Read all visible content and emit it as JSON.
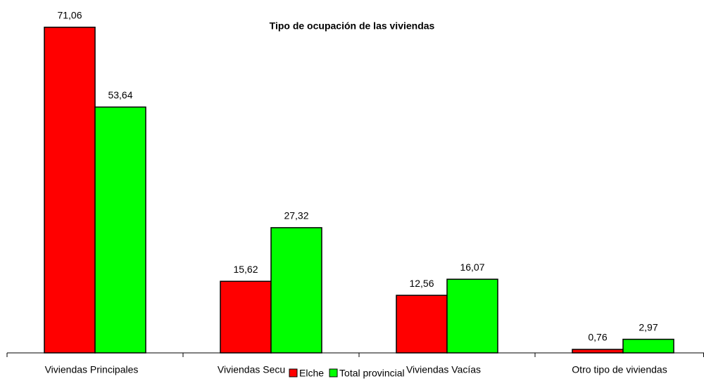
{
  "chart_data": {
    "type": "bar",
    "title": "Tipo de ocupación de las viviendas",
    "categories": [
      "Viviendas Principales",
      "Viviendas Secundarias",
      "Viviendas Vacías",
      "Otro tipo de viviendas"
    ],
    "series": [
      {
        "name": "Elche",
        "color": "#ff0000",
        "values": [
          71.06,
          15.62,
          12.56,
          0.76
        ],
        "value_labels": [
          "71,06",
          "15,62",
          "12,56",
          "0,76"
        ]
      },
      {
        "name": "Total provincial",
        "color": "#00ff00",
        "values": [
          53.64,
          27.32,
          16.07,
          2.97
        ],
        "value_labels": [
          "53,64",
          "27,32",
          "16,07",
          "2,97"
        ]
      }
    ],
    "ylim": [
      0,
      77
    ],
    "legend": "bottom"
  }
}
